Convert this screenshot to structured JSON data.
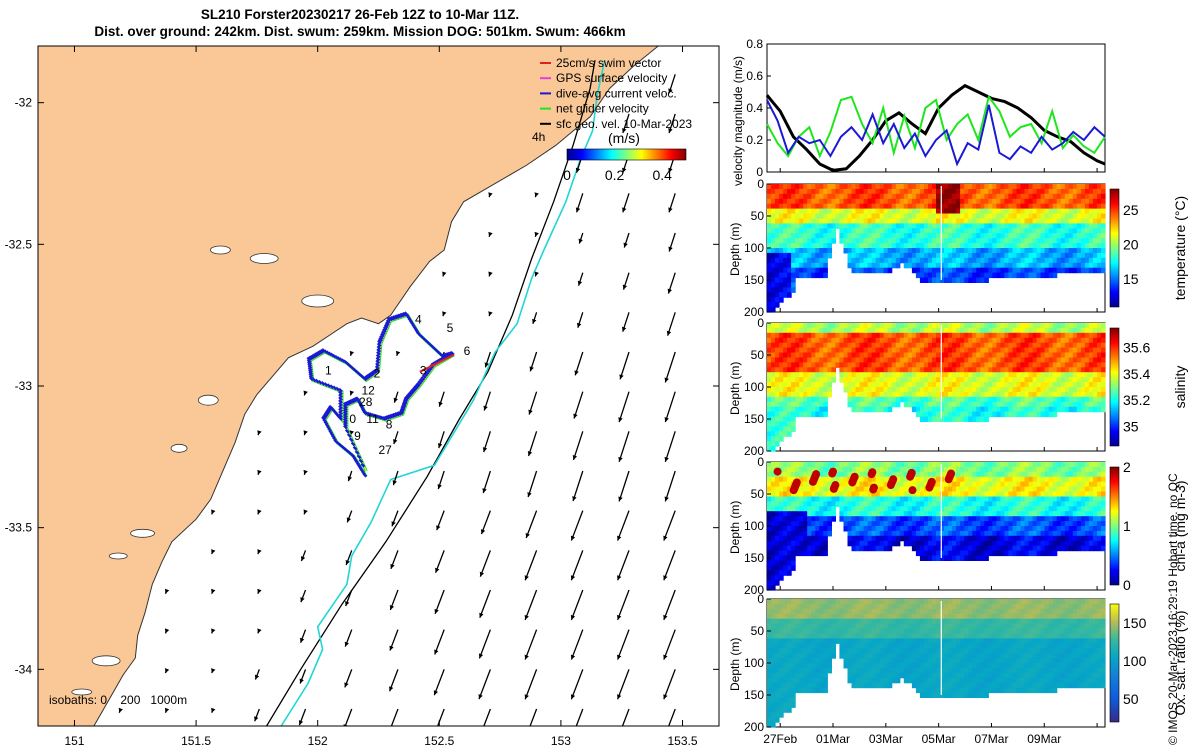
{
  "title": {
    "line1": "SL210 Forster20230217 26-Feb 12Z to 10-Mar 11Z.",
    "line2": "Dist. over ground: 242km. Dist. swum: 259km. Mission DOG: 501km. Swum: 466km"
  },
  "footer_note": "© IMOS 20-Mar-2023 16:29:19 Hobart time. no QC",
  "colors": {
    "land": "#fac896",
    "coast": "#333333",
    "isobath_200": "#000000",
    "isobath_1000": "#20d6d6",
    "gps": "#e040e0",
    "dive": "#1a1ad4",
    "net": "#1ee61e",
    "swim": "#e02020"
  },
  "chart_data": [
    {
      "type": "map",
      "xlim": [
        150.85,
        153.65
      ],
      "ylim": [
        -34.2,
        -31.8
      ],
      "x_ticks": [
        151,
        151.5,
        152,
        152.5,
        153,
        153.5
      ],
      "x_tick_labels": [
        "151",
        "151.5",
        "152",
        "152.5",
        "153",
        "153.5"
      ],
      "y_ticks": [
        -32,
        -32.5,
        -33,
        -33.5,
        -34
      ],
      "y_tick_labels": [
        "-32",
        "-32.5",
        "-33",
        "-33.5",
        "-34"
      ],
      "legend": [
        {
          "label": "25cm/s swim vector",
          "color": "#e02020"
        },
        {
          "label": "GPS surface velocity",
          "color": "#e040e0"
        },
        {
          "label": "dive-avg current veloc.",
          "color": "#1a1ad4"
        },
        {
          "label": "net glider velocity",
          "color": "#1ee61e"
        },
        {
          "label": "sfc geo. vel. 10-Mar-2023",
          "color": "#000000"
        }
      ],
      "colorbar": {
        "label": "(m/s)",
        "side_label": "4h",
        "range": [
          0,
          0.5
        ],
        "ticks": [
          0,
          0.2,
          0.4
        ],
        "tick_labels": [
          "0",
          "0.2",
          "0.4"
        ]
      },
      "isobath_label": "isobaths: 0    200   1000m",
      "isobath_200": [
        [
          151.79,
          -34.2
        ],
        [
          151.93,
          -34.0
        ],
        [
          152.1,
          -33.77
        ],
        [
          152.28,
          -33.55
        ],
        [
          152.45,
          -33.32
        ],
        [
          152.58,
          -33.12
        ],
        [
          152.7,
          -32.95
        ],
        [
          152.8,
          -32.75
        ],
        [
          152.88,
          -32.55
        ],
        [
          152.97,
          -32.35
        ],
        [
          153.05,
          -32.15
        ],
        [
          153.12,
          -31.95
        ],
        [
          153.14,
          -31.85
        ]
      ],
      "isobath_1000": [
        [
          151.85,
          -34.2
        ],
        [
          151.96,
          -34.05
        ],
        [
          152.02,
          -33.93
        ],
        [
          152.0,
          -33.85
        ],
        [
          152.12,
          -33.7
        ],
        [
          152.14,
          -33.6
        ],
        [
          152.22,
          -33.48
        ],
        [
          152.3,
          -33.33
        ],
        [
          152.48,
          -33.28
        ],
        [
          152.64,
          -33.05
        ],
        [
          152.73,
          -32.88
        ],
        [
          152.82,
          -32.78
        ],
        [
          152.88,
          -32.62
        ],
        [
          152.93,
          -32.52
        ],
        [
          153.02,
          -32.35
        ],
        [
          153.08,
          -32.2
        ],
        [
          153.13,
          -32.1
        ],
        [
          153.15,
          -31.97
        ],
        [
          153.18,
          -31.85
        ]
      ],
      "track": [
        [
          152.2,
          -33.32
        ],
        [
          152.15,
          -33.25
        ],
        [
          152.08,
          -33.2
        ],
        [
          152.03,
          -33.12
        ],
        [
          152.06,
          -33.08
        ],
        [
          152.1,
          -33.12
        ],
        [
          152.1,
          -33.02
        ],
        [
          151.98,
          -32.98
        ],
        [
          151.97,
          -32.91
        ],
        [
          152.03,
          -32.88
        ],
        [
          152.12,
          -32.92
        ],
        [
          152.2,
          -32.98
        ],
        [
          152.25,
          -32.95
        ],
        [
          152.26,
          -32.85
        ],
        [
          152.3,
          -32.77
        ],
        [
          152.37,
          -32.75
        ],
        [
          152.42,
          -32.82
        ],
        [
          152.52,
          -32.9
        ],
        [
          152.56,
          -32.89
        ],
        [
          152.48,
          -32.93
        ],
        [
          152.42,
          -33.0
        ],
        [
          152.37,
          -33.05
        ],
        [
          152.35,
          -33.1
        ],
        [
          152.28,
          -33.12
        ],
        [
          152.2,
          -33.1
        ],
        [
          152.17,
          -33.05
        ],
        [
          152.12,
          -33.07
        ],
        [
          152.12,
          -33.15
        ],
        [
          152.2,
          -33.3
        ]
      ],
      "track_labels": [
        {
          "text": "1",
          "lon": 152.03,
          "lat": -32.96
        },
        {
          "text": "2",
          "lon": 152.23,
          "lat": -32.97
        },
        {
          "text": "3",
          "lon": 152.42,
          "lat": -32.96
        },
        {
          "text": "4",
          "lon": 152.4,
          "lat": -32.78
        },
        {
          "text": "5",
          "lon": 152.53,
          "lat": -32.81
        },
        {
          "text": "6",
          "lon": 152.6,
          "lat": -32.89
        },
        {
          "text": "12",
          "lon": 152.18,
          "lat": -33.03
        },
        {
          "text": "28",
          "lon": 152.17,
          "lat": -33.07
        },
        {
          "text": "0",
          "lon": 152.13,
          "lat": -33.13
        },
        {
          "text": "11",
          "lon": 152.2,
          "lat": -33.13
        },
        {
          "text": "8",
          "lon": 152.28,
          "lat": -33.15
        },
        {
          "text": "9",
          "lon": 152.15,
          "lat": -33.19
        },
        {
          "text": "27",
          "lon": 152.25,
          "lat": -33.24
        }
      ]
    },
    {
      "type": "line",
      "xlabel": "",
      "ylabel": "velocity magnitude (m/s)",
      "ylim": [
        0,
        0.8
      ],
      "y_ticks": [
        0,
        0.2,
        0.4,
        0.6,
        0.8
      ],
      "y_tick_labels": [
        "0",
        "0.2",
        "0.4",
        "0.6",
        "0.8"
      ],
      "xlim": [
        0,
        12.8
      ],
      "series": [
        {
          "color": "#000000",
          "x": [
            0,
            0.5,
            1,
            1.5,
            2,
            2.5,
            3,
            3.5,
            4,
            4.5,
            5,
            5.5,
            6,
            6.5,
            7,
            7.5,
            8,
            8.5,
            9,
            9.5,
            10,
            10.5,
            11,
            11.5,
            12,
            12.5,
            12.8
          ],
          "y": [
            0.48,
            0.38,
            0.22,
            0.14,
            0.05,
            0.01,
            0.02,
            0.1,
            0.2,
            0.32,
            0.37,
            0.3,
            0.24,
            0.4,
            0.48,
            0.54,
            0.5,
            0.46,
            0.44,
            0.4,
            0.34,
            0.26,
            0.22,
            0.19,
            0.12,
            0.07,
            0.05
          ]
        },
        {
          "color": "#1ee61e",
          "x": [
            0,
            0.4,
            0.8,
            1.2,
            1.6,
            2,
            2.4,
            2.8,
            3.2,
            3.6,
            4,
            4.4,
            4.8,
            5.2,
            5.6,
            6,
            6.4,
            6.8,
            7.2,
            7.6,
            8,
            8.4,
            8.8,
            9.2,
            9.6,
            10,
            10.4,
            10.8,
            11.2,
            11.6,
            12,
            12.4,
            12.8
          ],
          "y": [
            0.3,
            0.18,
            0.1,
            0.22,
            0.28,
            0.1,
            0.25,
            0.45,
            0.47,
            0.3,
            0.18,
            0.4,
            0.12,
            0.35,
            0.15,
            0.4,
            0.45,
            0.2,
            0.3,
            0.36,
            0.2,
            0.47,
            0.38,
            0.22,
            0.28,
            0.3,
            0.18,
            0.38,
            0.15,
            0.23,
            0.16,
            0.12,
            0.22
          ]
        },
        {
          "color": "#1a1ad4",
          "x": [
            0,
            0.4,
            0.8,
            1.2,
            1.6,
            2,
            2.4,
            2.8,
            3.2,
            3.6,
            4,
            4.4,
            4.8,
            5.2,
            5.6,
            6,
            6.4,
            6.8,
            7.2,
            7.6,
            8,
            8.4,
            8.8,
            9.2,
            9.6,
            10,
            10.4,
            10.8,
            11.2,
            11.6,
            12,
            12.4,
            12.8
          ],
          "y": [
            0.45,
            0.32,
            0.12,
            0.22,
            0.18,
            0.2,
            0.1,
            0.22,
            0.28,
            0.2,
            0.36,
            0.18,
            0.3,
            0.15,
            0.24,
            0.1,
            0.2,
            0.26,
            0.05,
            0.18,
            0.14,
            0.42,
            0.12,
            0.08,
            0.16,
            0.12,
            0.22,
            0.14,
            0.18,
            0.25,
            0.2,
            0.28,
            0.22
          ]
        }
      ]
    },
    {
      "type": "heatmap",
      "variable": "temperature",
      "cbar_label": "temperature (°C)",
      "ylabel": "Depth (m)",
      "ylim": [
        200,
        0
      ],
      "y_ticks": [
        0,
        50,
        100,
        150,
        200
      ],
      "y_tick_labels": [
        "0",
        "50",
        "100",
        "150",
        "200"
      ],
      "clim": [
        11,
        28
      ],
      "cbar_ticks": [
        15,
        20,
        25
      ],
      "cbar_tick_labels": [
        "15",
        "20",
        "25"
      ]
    },
    {
      "type": "heatmap",
      "variable": "salinity",
      "cbar_label": "salinity",
      "ylabel": "Depth (m)",
      "ylim": [
        200,
        0
      ],
      "y_ticks": [
        0,
        50,
        100,
        150,
        200
      ],
      "y_tick_labels": [
        "0",
        "50",
        "100",
        "150",
        "200"
      ],
      "clim": [
        34.85,
        35.75
      ],
      "cbar_ticks": [
        35,
        35.2,
        35.4,
        35.6
      ],
      "cbar_tick_labels": [
        "35",
        "35.2",
        "35.4",
        "35.6"
      ]
    },
    {
      "type": "heatmap",
      "variable": "chl-a",
      "cbar_label": "chl-a (mg m-3)",
      "ylabel": "Depth (m)",
      "ylim": [
        200,
        0
      ],
      "y_ticks": [
        0,
        50,
        100,
        150,
        200
      ],
      "y_tick_labels": [
        "0",
        "50",
        "100",
        "150",
        "200"
      ],
      "clim": [
        0,
        2
      ],
      "cbar_ticks": [
        0,
        1,
        2
      ],
      "cbar_tick_labels": [
        "0",
        "1",
        "2"
      ]
    },
    {
      "type": "heatmap",
      "variable": "oxygen",
      "cbar_label": "Ox. sat. ratio (%)",
      "ylabel": "Depth (m)",
      "ylim": [
        200,
        0
      ],
      "y_ticks": [
        0,
        50,
        100,
        150,
        200
      ],
      "y_tick_labels": [
        "0",
        "50",
        "100",
        "150",
        "200"
      ],
      "clim": [
        20,
        175
      ],
      "cbar_ticks": [
        50,
        100,
        150
      ],
      "cbar_tick_labels": [
        "50",
        "100",
        "150"
      ],
      "x_tick_days": [
        0.5,
        2.5,
        4.5,
        6.5,
        8.5,
        10.5,
        12.5
      ],
      "x_tick_labels": [
        "27Feb",
        "01Mar",
        "03Mar",
        "05Mar",
        "07Mar",
        "09Mar",
        ""
      ]
    }
  ]
}
